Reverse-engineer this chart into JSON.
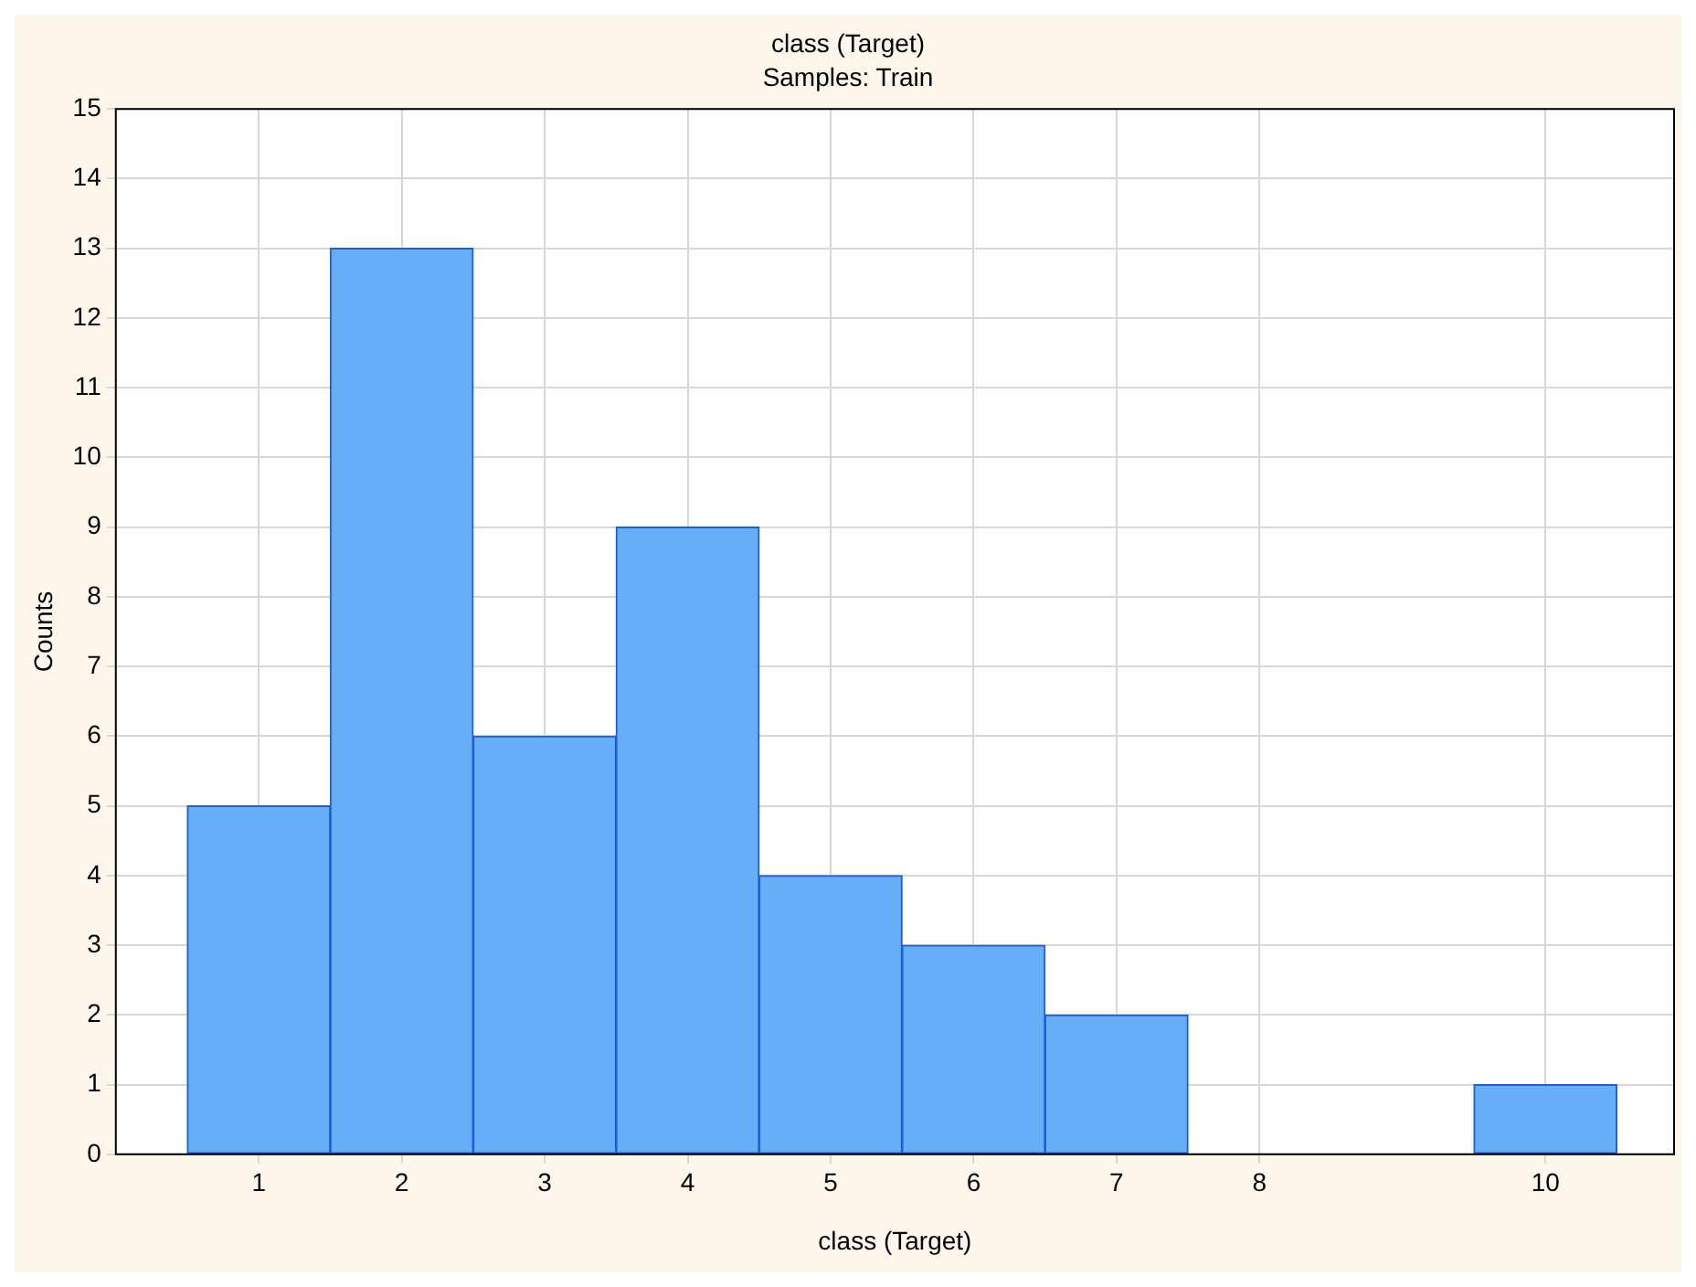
{
  "chart_data": {
    "type": "histogram",
    "title": "class (Target)",
    "subtitle": "Samples: Train",
    "xlabel": "class (Target)",
    "ylabel": "Counts",
    "bins": [
      0.5,
      1.5,
      2.5,
      3.5,
      4.5,
      5.5,
      6.5,
      7.5,
      8.5,
      9.5,
      10.5
    ],
    "values": [
      5,
      13,
      6,
      9,
      4,
      3,
      2,
      0,
      0,
      1
    ],
    "color": "#66aef8",
    "xlim": [
      0,
      10.9
    ],
    "xticks": [
      1,
      2,
      3,
      4,
      5,
      6,
      7,
      8,
      10
    ],
    "ylim": [
      0,
      15
    ],
    "yticks": [
      0,
      1,
      2,
      3,
      4,
      5,
      6,
      7,
      8,
      9,
      10,
      11,
      12,
      13,
      14,
      15
    ],
    "grid": true,
    "legend": false
  }
}
